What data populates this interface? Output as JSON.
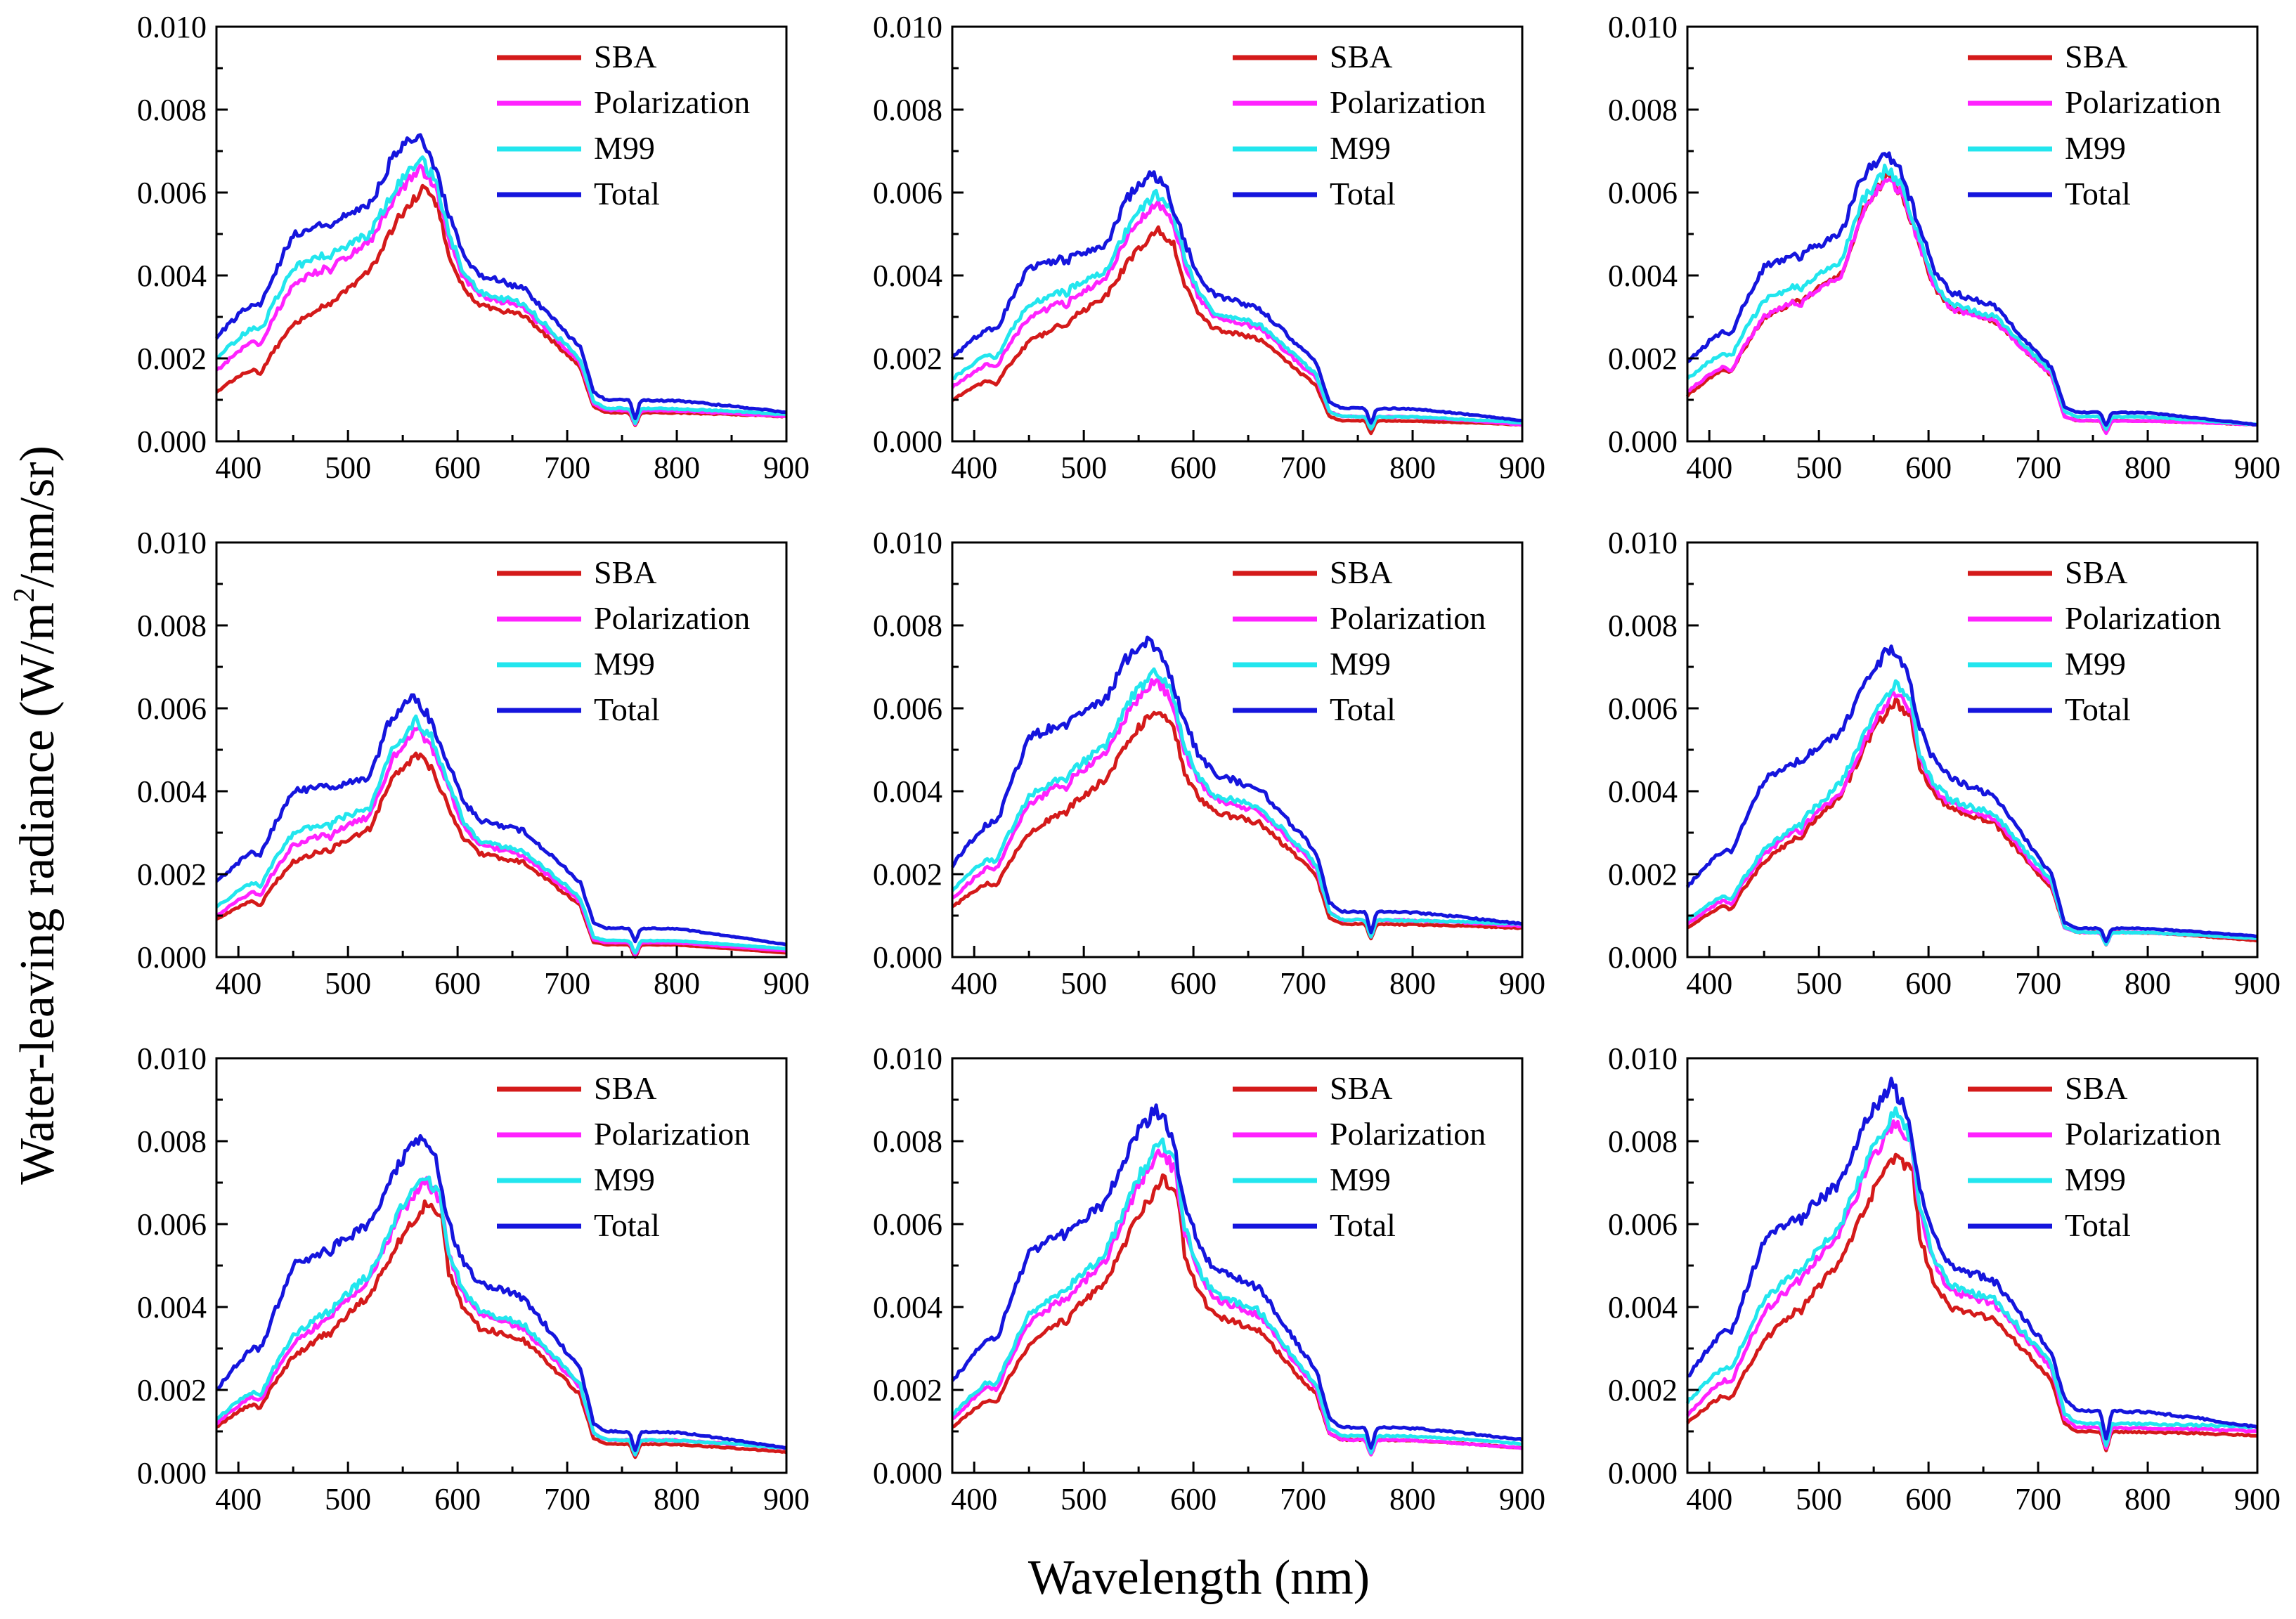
{
  "figure": {
    "ylabel": "Water-leaving radiance (W/m²/nm/sr)",
    "ylabel_prefix": "Water-leaving radiance (W/m",
    "ylabel_sup": "2",
    "ylabel_suffix": "/nm/sr)",
    "xlabel": "Wavelength (nm)"
  },
  "chart_data": [
    {
      "type": "line",
      "panel": 1,
      "xlim": [
        380,
        900
      ],
      "ylim": [
        0,
        0.01
      ],
      "x_ticks": [
        400,
        500,
        600,
        700,
        800,
        900
      ],
      "y_ticks": [
        "0.000",
        "0.002",
        "0.004",
        "0.006",
        "0.008",
        "0.010"
      ],
      "legend_position": "top-right",
      "series": [
        {
          "name": "SBA",
          "color": "#d41a1a",
          "peak": 0.0061,
          "peak_wl": 568,
          "v380": 0.0012,
          "v450": 0.0028,
          "v520": 0.0041,
          "v620": 0.0033,
          "v700": 0.0021,
          "nir": 0.0007,
          "v900": 0.0006
        },
        {
          "name": "Polarization",
          "color": "#ff22ff",
          "peak": 0.0066,
          "peak_wl": 566,
          "v380": 0.0017,
          "v450": 0.0038,
          "v520": 0.0048,
          "v620": 0.0035,
          "v700": 0.0022,
          "nir": 0.00075,
          "v900": 0.0006
        },
        {
          "name": "M99",
          "color": "#22e6ee",
          "peak": 0.0068,
          "peak_wl": 566,
          "v380": 0.002,
          "v450": 0.0042,
          "v520": 0.005,
          "v620": 0.0036,
          "v700": 0.0023,
          "nir": 0.0008,
          "v900": 0.00065
        },
        {
          "name": "Total",
          "color": "#1515dd",
          "peak": 0.0074,
          "peak_wl": 562,
          "v380": 0.0025,
          "v450": 0.005,
          "v520": 0.0057,
          "v620": 0.004,
          "v700": 0.0026,
          "nir": 0.001,
          "v900": 0.0007
        }
      ]
    },
    {
      "type": "line",
      "panel": 2,
      "xlim": [
        380,
        900
      ],
      "ylim": [
        0,
        0.01
      ],
      "x_ticks": [
        400,
        500,
        600,
        700,
        800,
        900
      ],
      "y_ticks": [
        "0.000",
        "0.002",
        "0.004",
        "0.006",
        "0.008",
        "0.010"
      ],
      "legend_position": "top-right",
      "series": [
        {
          "name": "SBA",
          "color": "#d41a1a",
          "peak": 0.0051,
          "peak_wl": 568,
          "v380": 0.001,
          "v450": 0.0024,
          "v520": 0.0035,
          "v620": 0.0027,
          "v700": 0.0016,
          "nir": 0.0005,
          "v900": 0.0004
        },
        {
          "name": "Polarization",
          "color": "#ff22ff",
          "peak": 0.0058,
          "peak_wl": 566,
          "v380": 0.0013,
          "v450": 0.003,
          "v520": 0.0039,
          "v620": 0.003,
          "v700": 0.0018,
          "nir": 0.0006,
          "v900": 0.0004
        },
        {
          "name": "M99",
          "color": "#22e6ee",
          "peak": 0.006,
          "peak_wl": 566,
          "v380": 0.0015,
          "v450": 0.0033,
          "v520": 0.0041,
          "v620": 0.0031,
          "v700": 0.0019,
          "nir": 0.0006,
          "v900": 0.00045
        },
        {
          "name": "Total",
          "color": "#1515dd",
          "peak": 0.0065,
          "peak_wl": 562,
          "v380": 0.002,
          "v450": 0.0042,
          "v520": 0.0047,
          "v620": 0.0035,
          "v700": 0.0022,
          "nir": 0.0008,
          "v900": 0.0005
        }
      ]
    },
    {
      "type": "line",
      "panel": 3,
      "xlim": [
        380,
        900
      ],
      "ylim": [
        0,
        0.01
      ],
      "x_ticks": [
        400,
        500,
        600,
        700,
        800,
        900
      ],
      "y_ticks": [
        "0.000",
        "0.002",
        "0.004",
        "0.006",
        "0.008",
        "0.010"
      ],
      "legend_position": "top-right",
      "series": [
        {
          "name": "SBA",
          "color": "#d41a1a",
          "peak": 0.0064,
          "peak_wl": 562,
          "v380": 0.0011,
          "v450": 0.003,
          "v520": 0.004,
          "v620": 0.0032,
          "v700": 0.0019,
          "nir": 0.0005,
          "v900": 0.0004
        },
        {
          "name": "Polarization",
          "color": "#ff22ff",
          "peak": 0.0064,
          "peak_wl": 562,
          "v380": 0.0012,
          "v450": 0.003,
          "v520": 0.004,
          "v620": 0.0032,
          "v700": 0.0019,
          "nir": 0.0005,
          "v900": 0.0004
        },
        {
          "name": "M99",
          "color": "#22e6ee",
          "peak": 0.0066,
          "peak_wl": 562,
          "v380": 0.0015,
          "v450": 0.0034,
          "v520": 0.0043,
          "v620": 0.0033,
          "v700": 0.002,
          "nir": 0.0006,
          "v900": 0.0004
        },
        {
          "name": "Total",
          "color": "#1515dd",
          "peak": 0.007,
          "peak_wl": 560,
          "v380": 0.0019,
          "v450": 0.0042,
          "v520": 0.005,
          "v620": 0.0036,
          "v700": 0.0021,
          "nir": 0.0007,
          "v900": 0.0004
        }
      ]
    },
    {
      "type": "line",
      "panel": 4,
      "xlim": [
        380,
        900
      ],
      "ylim": [
        0,
        0.01
      ],
      "x_ticks": [
        400,
        500,
        600,
        700,
        800,
        900
      ],
      "y_ticks": [
        "0.000",
        "0.002",
        "0.004",
        "0.006",
        "0.008",
        "0.010"
      ],
      "legend_position": "top-right",
      "series": [
        {
          "name": "SBA",
          "color": "#d41a1a",
          "peak": 0.0049,
          "peak_wl": 562,
          "v380": 0.0009,
          "v450": 0.0023,
          "v520": 0.0031,
          "v620": 0.0025,
          "v700": 0.0015,
          "nir": 0.0003,
          "v900": 0.0001
        },
        {
          "name": "Polarization",
          "color": "#ff22ff",
          "peak": 0.0055,
          "peak_wl": 562,
          "v380": 0.001,
          "v450": 0.0027,
          "v520": 0.0034,
          "v620": 0.0027,
          "v700": 0.0016,
          "nir": 0.00035,
          "v900": 0.00015
        },
        {
          "name": "M99",
          "color": "#22e6ee",
          "peak": 0.0057,
          "peak_wl": 562,
          "v380": 0.0012,
          "v450": 0.003,
          "v520": 0.0036,
          "v620": 0.0028,
          "v700": 0.0017,
          "nir": 0.0004,
          "v900": 0.0002
        },
        {
          "name": "Total",
          "color": "#1515dd",
          "peak": 0.0063,
          "peak_wl": 558,
          "v380": 0.0018,
          "v450": 0.004,
          "v520": 0.0043,
          "v620": 0.0033,
          "v700": 0.0021,
          "nir": 0.0007,
          "v900": 0.0003
        }
      ]
    },
    {
      "type": "line",
      "panel": 5,
      "xlim": [
        380,
        900
      ],
      "ylim": [
        0,
        0.01
      ],
      "x_ticks": [
        400,
        500,
        600,
        700,
        800,
        900
      ],
      "y_ticks": [
        "0.000",
        "0.002",
        "0.004",
        "0.006",
        "0.008",
        "0.010"
      ],
      "legend_position": "top-right",
      "series": [
        {
          "name": "SBA",
          "color": "#d41a1a",
          "peak": 0.006,
          "peak_wl": 568,
          "v380": 0.0012,
          "v450": 0.003,
          "v520": 0.0043,
          "v620": 0.0035,
          "v700": 0.0023,
          "nir": 0.0008,
          "v900": 0.0007
        },
        {
          "name": "Polarization",
          "color": "#ff22ff",
          "peak": 0.0067,
          "peak_wl": 566,
          "v380": 0.0014,
          "v450": 0.0037,
          "v520": 0.0049,
          "v620": 0.0038,
          "v700": 0.0025,
          "nir": 0.0009,
          "v900": 0.00075
        },
        {
          "name": "M99",
          "color": "#22e6ee",
          "peak": 0.0069,
          "peak_wl": 566,
          "v380": 0.0016,
          "v450": 0.0039,
          "v520": 0.0051,
          "v620": 0.0039,
          "v700": 0.0026,
          "nir": 0.0009,
          "v900": 0.0008
        },
        {
          "name": "Total",
          "color": "#1515dd",
          "peak": 0.0077,
          "peak_wl": 560,
          "v380": 0.0022,
          "v450": 0.0053,
          "v520": 0.0062,
          "v620": 0.0044,
          "v700": 0.0029,
          "nir": 0.0011,
          "v900": 0.0008
        }
      ]
    },
    {
      "type": "line",
      "panel": 6,
      "xlim": [
        380,
        900
      ],
      "ylim": [
        0,
        0.01
      ],
      "x_ticks": [
        400,
        500,
        600,
        700,
        800,
        900
      ],
      "y_ticks": [
        "0.000",
        "0.002",
        "0.004",
        "0.006",
        "0.008",
        "0.010"
      ],
      "legend_position": "top-right",
      "series": [
        {
          "name": "SBA",
          "color": "#d41a1a",
          "peak": 0.0062,
          "peak_wl": 570,
          "v380": 0.0007,
          "v450": 0.0023,
          "v520": 0.0039,
          "v620": 0.0036,
          "v700": 0.002,
          "nir": 0.0006,
          "v900": 0.0004
        },
        {
          "name": "Polarization",
          "color": "#ff22ff",
          "peak": 0.0064,
          "peak_wl": 570,
          "v380": 0.0008,
          "v450": 0.0025,
          "v520": 0.004,
          "v620": 0.0037,
          "v700": 0.0021,
          "nir": 0.0006,
          "v900": 0.00045
        },
        {
          "name": "M99",
          "color": "#22e6ee",
          "peak": 0.0066,
          "peak_wl": 570,
          "v380": 0.0009,
          "v450": 0.0026,
          "v520": 0.0042,
          "v620": 0.0038,
          "v700": 0.0022,
          "nir": 0.0006,
          "v900": 0.00045
        },
        {
          "name": "Total",
          "color": "#1515dd",
          "peak": 0.0075,
          "peak_wl": 566,
          "v380": 0.0017,
          "v450": 0.0043,
          "v520": 0.0054,
          "v620": 0.0043,
          "v700": 0.0024,
          "nir": 0.0007,
          "v900": 0.0005
        }
      ]
    },
    {
      "type": "line",
      "panel": 7,
      "xlim": [
        380,
        900
      ],
      "ylim": [
        0,
        0.01
      ],
      "x_ticks": [
        400,
        500,
        600,
        700,
        800,
        900
      ],
      "y_ticks": [
        "0.000",
        "0.002",
        "0.004",
        "0.006",
        "0.008",
        "0.010"
      ],
      "legend_position": "top-right",
      "series": [
        {
          "name": "SBA",
          "color": "#d41a1a",
          "peak": 0.0065,
          "peak_wl": 572,
          "v380": 0.0011,
          "v450": 0.0028,
          "v520": 0.0043,
          "v620": 0.0035,
          "v700": 0.0022,
          "nir": 0.0007,
          "v900": 0.0005
        },
        {
          "name": "Polarization",
          "color": "#ff22ff",
          "peak": 0.0071,
          "peak_wl": 570,
          "v380": 0.0012,
          "v450": 0.0031,
          "v520": 0.0047,
          "v620": 0.0038,
          "v700": 0.0024,
          "nir": 0.0008,
          "v900": 0.0006
        },
        {
          "name": "M99",
          "color": "#22e6ee",
          "peak": 0.0072,
          "peak_wl": 570,
          "v380": 0.0013,
          "v450": 0.0033,
          "v520": 0.0048,
          "v620": 0.0039,
          "v700": 0.0025,
          "nir": 0.0008,
          "v900": 0.0006
        },
        {
          "name": "Total",
          "color": "#1515dd",
          "peak": 0.0081,
          "peak_wl": 566,
          "v380": 0.002,
          "v450": 0.005,
          "v520": 0.006,
          "v620": 0.0046,
          "v700": 0.0029,
          "nir": 0.001,
          "v900": 0.0006
        }
      ]
    },
    {
      "type": "line",
      "panel": 8,
      "xlim": [
        380,
        900
      ],
      "ylim": [
        0,
        0.01
      ],
      "x_ticks": [
        400,
        500,
        600,
        700,
        800,
        900
      ],
      "y_ticks": [
        "0.000",
        "0.002",
        "0.004",
        "0.006",
        "0.008",
        "0.010"
      ],
      "legend_position": "top-right",
      "series": [
        {
          "name": "SBA",
          "color": "#d41a1a",
          "peak": 0.0071,
          "peak_wl": 572,
          "v380": 0.0011,
          "v450": 0.0031,
          "v520": 0.0046,
          "v620": 0.0038,
          "v700": 0.0022,
          "nir": 0.0008,
          "v900": 0.0006
        },
        {
          "name": "Polarization",
          "color": "#ff22ff",
          "peak": 0.0078,
          "peak_wl": 570,
          "v380": 0.0013,
          "v450": 0.0036,
          "v520": 0.0051,
          "v620": 0.0042,
          "v700": 0.0024,
          "nir": 0.0008,
          "v900": 0.0006
        },
        {
          "name": "M99",
          "color": "#22e6ee",
          "peak": 0.008,
          "peak_wl": 570,
          "v380": 0.0014,
          "v450": 0.0038,
          "v520": 0.0053,
          "v620": 0.0043,
          "v700": 0.0025,
          "nir": 0.0009,
          "v900": 0.0007
        },
        {
          "name": "Total",
          "color": "#1515dd",
          "peak": 0.0088,
          "peak_wl": 566,
          "v380": 0.0022,
          "v450": 0.0053,
          "v520": 0.0065,
          "v620": 0.0049,
          "v700": 0.0029,
          "nir": 0.0011,
          "v900": 0.0008
        }
      ]
    },
    {
      "type": "line",
      "panel": 9,
      "xlim": [
        380,
        900
      ],
      "ylim": [
        0,
        0.01
      ],
      "x_ticks": [
        400,
        500,
        600,
        700,
        800,
        900
      ],
      "y_ticks": [
        "0.000",
        "0.002",
        "0.004",
        "0.006",
        "0.008",
        "0.010"
      ],
      "legend_position": "top-right",
      "series": [
        {
          "name": "SBA",
          "color": "#d41a1a",
          "peak": 0.0077,
          "peak_wl": 572,
          "v380": 0.0012,
          "v450": 0.0032,
          "v520": 0.0051,
          "v620": 0.004,
          "v700": 0.0026,
          "nir": 0.001,
          "v900": 0.0009
        },
        {
          "name": "Polarization",
          "color": "#ff22ff",
          "peak": 0.0085,
          "peak_wl": 570,
          "v380": 0.0014,
          "v450": 0.0039,
          "v520": 0.0058,
          "v620": 0.0044,
          "v700": 0.0029,
          "nir": 0.0011,
          "v900": 0.001
        },
        {
          "name": "M99",
          "color": "#22e6ee",
          "peak": 0.0087,
          "peak_wl": 570,
          "v380": 0.0017,
          "v450": 0.0042,
          "v520": 0.006,
          "v620": 0.0045,
          "v700": 0.003,
          "nir": 0.0012,
          "v900": 0.0011
        },
        {
          "name": "Total",
          "color": "#1515dd",
          "peak": 0.0094,
          "peak_wl": 566,
          "v380": 0.0023,
          "v450": 0.0056,
          "v520": 0.007,
          "v620": 0.005,
          "v700": 0.0033,
          "nir": 0.0015,
          "v900": 0.0011
        }
      ]
    }
  ]
}
